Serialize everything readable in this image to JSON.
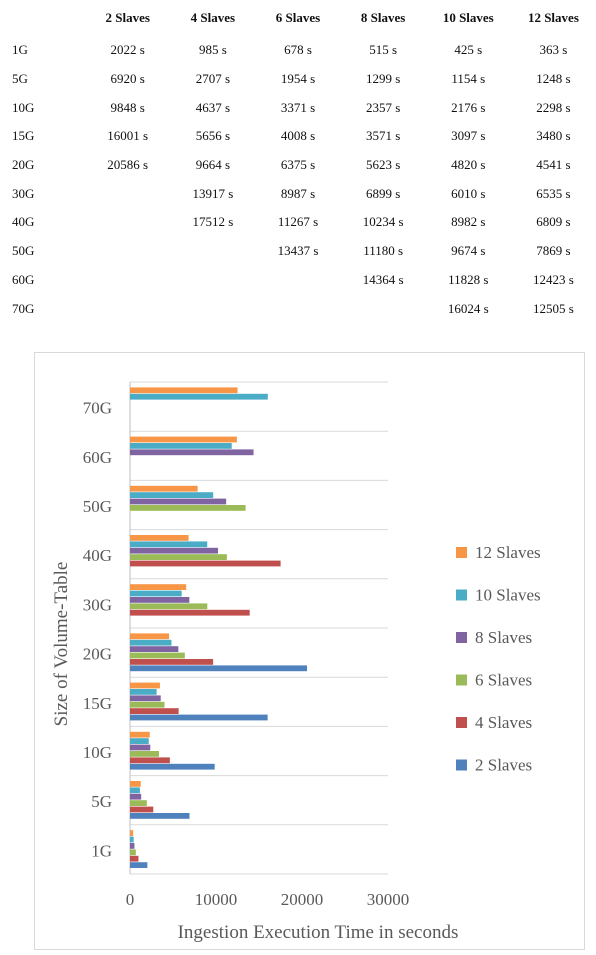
{
  "table": {
    "columns": [
      "2 Slaves",
      "4 Slaves",
      "6 Slaves",
      "8 Slaves",
      "10 Slaves",
      "12 Slaves"
    ],
    "rows": [
      {
        "label": "1G",
        "cells": [
          "2022 s",
          "985 s",
          "678 s",
          "515 s",
          "425 s",
          "363 s"
        ]
      },
      {
        "label": "5G",
        "cells": [
          "6920 s",
          "2707 s",
          "1954 s",
          "1299 s",
          "1154 s",
          "1248 s"
        ]
      },
      {
        "label": "10G",
        "cells": [
          "9848 s",
          "4637 s",
          "3371 s",
          "2357 s",
          "2176 s",
          "2298 s"
        ]
      },
      {
        "label": "15G",
        "cells": [
          "16001 s",
          "5656 s",
          "4008 s",
          "3571 s",
          "3097 s",
          "3480 s"
        ]
      },
      {
        "label": "20G",
        "cells": [
          "20586 s",
          "9664 s",
          "6375 s",
          "5623 s",
          "4820 s",
          "4541 s"
        ]
      },
      {
        "label": "30G",
        "cells": [
          "",
          "13917 s",
          "8987 s",
          "6899 s",
          "6010 s",
          "6535 s"
        ]
      },
      {
        "label": "40G",
        "cells": [
          "",
          "17512 s",
          "11267 s",
          "10234 s",
          "8982 s",
          "6809 s"
        ]
      },
      {
        "label": "50G",
        "cells": [
          "",
          "",
          "13437 s",
          "11180 s",
          "9674 s",
          "7869 s"
        ]
      },
      {
        "label": "60G",
        "cells": [
          "",
          "",
          "",
          "14364 s",
          "11828 s",
          "12423 s"
        ]
      },
      {
        "label": "70G",
        "cells": [
          "",
          "",
          "",
          "",
          "16024 s",
          "12505 s"
        ]
      }
    ]
  },
  "chart_data": {
    "type": "bar",
    "orientation": "horizontal",
    "categories": [
      "1G",
      "5G",
      "10G",
      "15G",
      "20G",
      "30G",
      "40G",
      "50G",
      "60G",
      "70G"
    ],
    "xlabel": "Ingestion Execution Time in seconds",
    "ylabel": "Size of Volume-Table",
    "xlim": [
      0,
      30000
    ],
    "xticks": [
      "0",
      "10000",
      "20000",
      "30000"
    ],
    "grid": "horizontal",
    "legend_position": "right",
    "series": [
      {
        "name": "2 Slaves",
        "color": "#4f81bd",
        "values": [
          2022,
          6920,
          9848,
          16001,
          20586,
          null,
          null,
          null,
          null,
          null
        ]
      },
      {
        "name": "4 Slaves",
        "color": "#c0504d",
        "values": [
          985,
          2707,
          4637,
          5656,
          9664,
          13917,
          17512,
          null,
          null,
          null
        ]
      },
      {
        "name": "6 Slaves",
        "color": "#9bbb59",
        "values": [
          678,
          1954,
          3371,
          4008,
          6375,
          8987,
          11267,
          13437,
          null,
          null
        ]
      },
      {
        "name": "8 Slaves",
        "color": "#8064a2",
        "values": [
          515,
          1299,
          2357,
          3571,
          5623,
          6899,
          10234,
          11180,
          14364,
          null
        ]
      },
      {
        "name": "10 Slaves",
        "color": "#4bacc6",
        "values": [
          425,
          1154,
          2176,
          3097,
          4820,
          6010,
          8982,
          9674,
          11828,
          16024
        ]
      },
      {
        "name": "12 Slaves",
        "color": "#f79646",
        "values": [
          363,
          1248,
          2298,
          3480,
          4541,
          6535,
          6809,
          7869,
          12423,
          12505
        ]
      }
    ]
  }
}
